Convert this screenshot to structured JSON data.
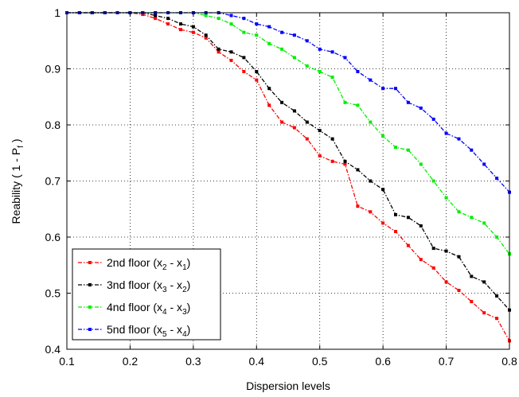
{
  "chart_data": {
    "type": "line",
    "xlabel": "Dispersion levels",
    "ylabel_main": "Reability  ( 1 - P",
    "ylabel_sub": "f",
    "ylabel_end": " )",
    "xlim": [
      0.1,
      0.8
    ],
    "ylim": [
      0.4,
      1.0
    ],
    "x_ticks": [
      "0.1",
      "0.2",
      "0.3",
      "0.4",
      "0.5",
      "0.6",
      "0.7",
      "0.8"
    ],
    "y_ticks": [
      "0.4",
      "0.5",
      "0.6",
      "0.7",
      "0.8",
      "0.9",
      "1"
    ],
    "grid": true,
    "legend_position": "bottom-left",
    "x": [
      0.1,
      0.12,
      0.14,
      0.16,
      0.18,
      0.2,
      0.22,
      0.24,
      0.26,
      0.28,
      0.3,
      0.32,
      0.34,
      0.36,
      0.38,
      0.4,
      0.42,
      0.44,
      0.46,
      0.48,
      0.5,
      0.52,
      0.54,
      0.56,
      0.58,
      0.6,
      0.62,
      0.64,
      0.66,
      0.68,
      0.7,
      0.72,
      0.74,
      0.76,
      0.78,
      0.8
    ],
    "series": [
      {
        "legend_main": "2nd floor (x",
        "sub1": "2",
        "mid": " - x",
        "sub2": "1",
        "end": ")",
        "color": "#ff0000",
        "values": [
          1.0,
          1.0,
          1.0,
          1.0,
          1.0,
          1.0,
          0.997,
          0.99,
          0.98,
          0.97,
          0.965,
          0.955,
          0.93,
          0.915,
          0.895,
          0.88,
          0.835,
          0.805,
          0.795,
          0.775,
          0.745,
          0.735,
          0.73,
          0.655,
          0.645,
          0.625,
          0.61,
          0.585,
          0.56,
          0.545,
          0.52,
          0.505,
          0.485,
          0.465,
          0.455,
          0.415
        ]
      },
      {
        "legend_main": "3nd floor (x",
        "sub1": "3",
        "mid": " - x",
        "sub2": "2",
        "end": ")",
        "color": "#000000",
        "values": [
          1.0,
          1.0,
          1.0,
          1.0,
          1.0,
          1.0,
          1.0,
          0.995,
          0.99,
          0.98,
          0.975,
          0.96,
          0.935,
          0.93,
          0.92,
          0.895,
          0.865,
          0.84,
          0.825,
          0.805,
          0.79,
          0.775,
          0.735,
          0.72,
          0.7,
          0.685,
          0.64,
          0.635,
          0.62,
          0.58,
          0.575,
          0.565,
          0.53,
          0.52,
          0.495,
          0.47
        ]
      },
      {
        "legend_main": "4nd floor (x",
        "sub1": "4",
        "mid": " - x",
        "sub2": "3",
        "end": ")",
        "color": "#00ee00",
        "values": [
          1.0,
          1.0,
          1.0,
          1.0,
          1.0,
          1.0,
          1.0,
          1.0,
          1.0,
          1.0,
          1.0,
          0.995,
          0.99,
          0.98,
          0.965,
          0.96,
          0.945,
          0.935,
          0.92,
          0.905,
          0.895,
          0.885,
          0.84,
          0.835,
          0.805,
          0.78,
          0.76,
          0.755,
          0.73,
          0.7,
          0.67,
          0.645,
          0.635,
          0.625,
          0.6,
          0.57
        ]
      },
      {
        "legend_main": "5nd floor (x",
        "sub1": "5",
        "mid": " - x",
        "sub2": "4",
        "end": ")",
        "color": "#0000ff",
        "values": [
          1.0,
          1.0,
          1.0,
          1.0,
          1.0,
          1.0,
          1.0,
          1.0,
          1.0,
          1.0,
          1.0,
          1.0,
          1.0,
          0.995,
          0.99,
          0.98,
          0.975,
          0.965,
          0.96,
          0.95,
          0.935,
          0.93,
          0.92,
          0.895,
          0.88,
          0.865,
          0.865,
          0.84,
          0.83,
          0.81,
          0.785,
          0.775,
          0.755,
          0.73,
          0.705,
          0.68
        ]
      }
    ]
  }
}
